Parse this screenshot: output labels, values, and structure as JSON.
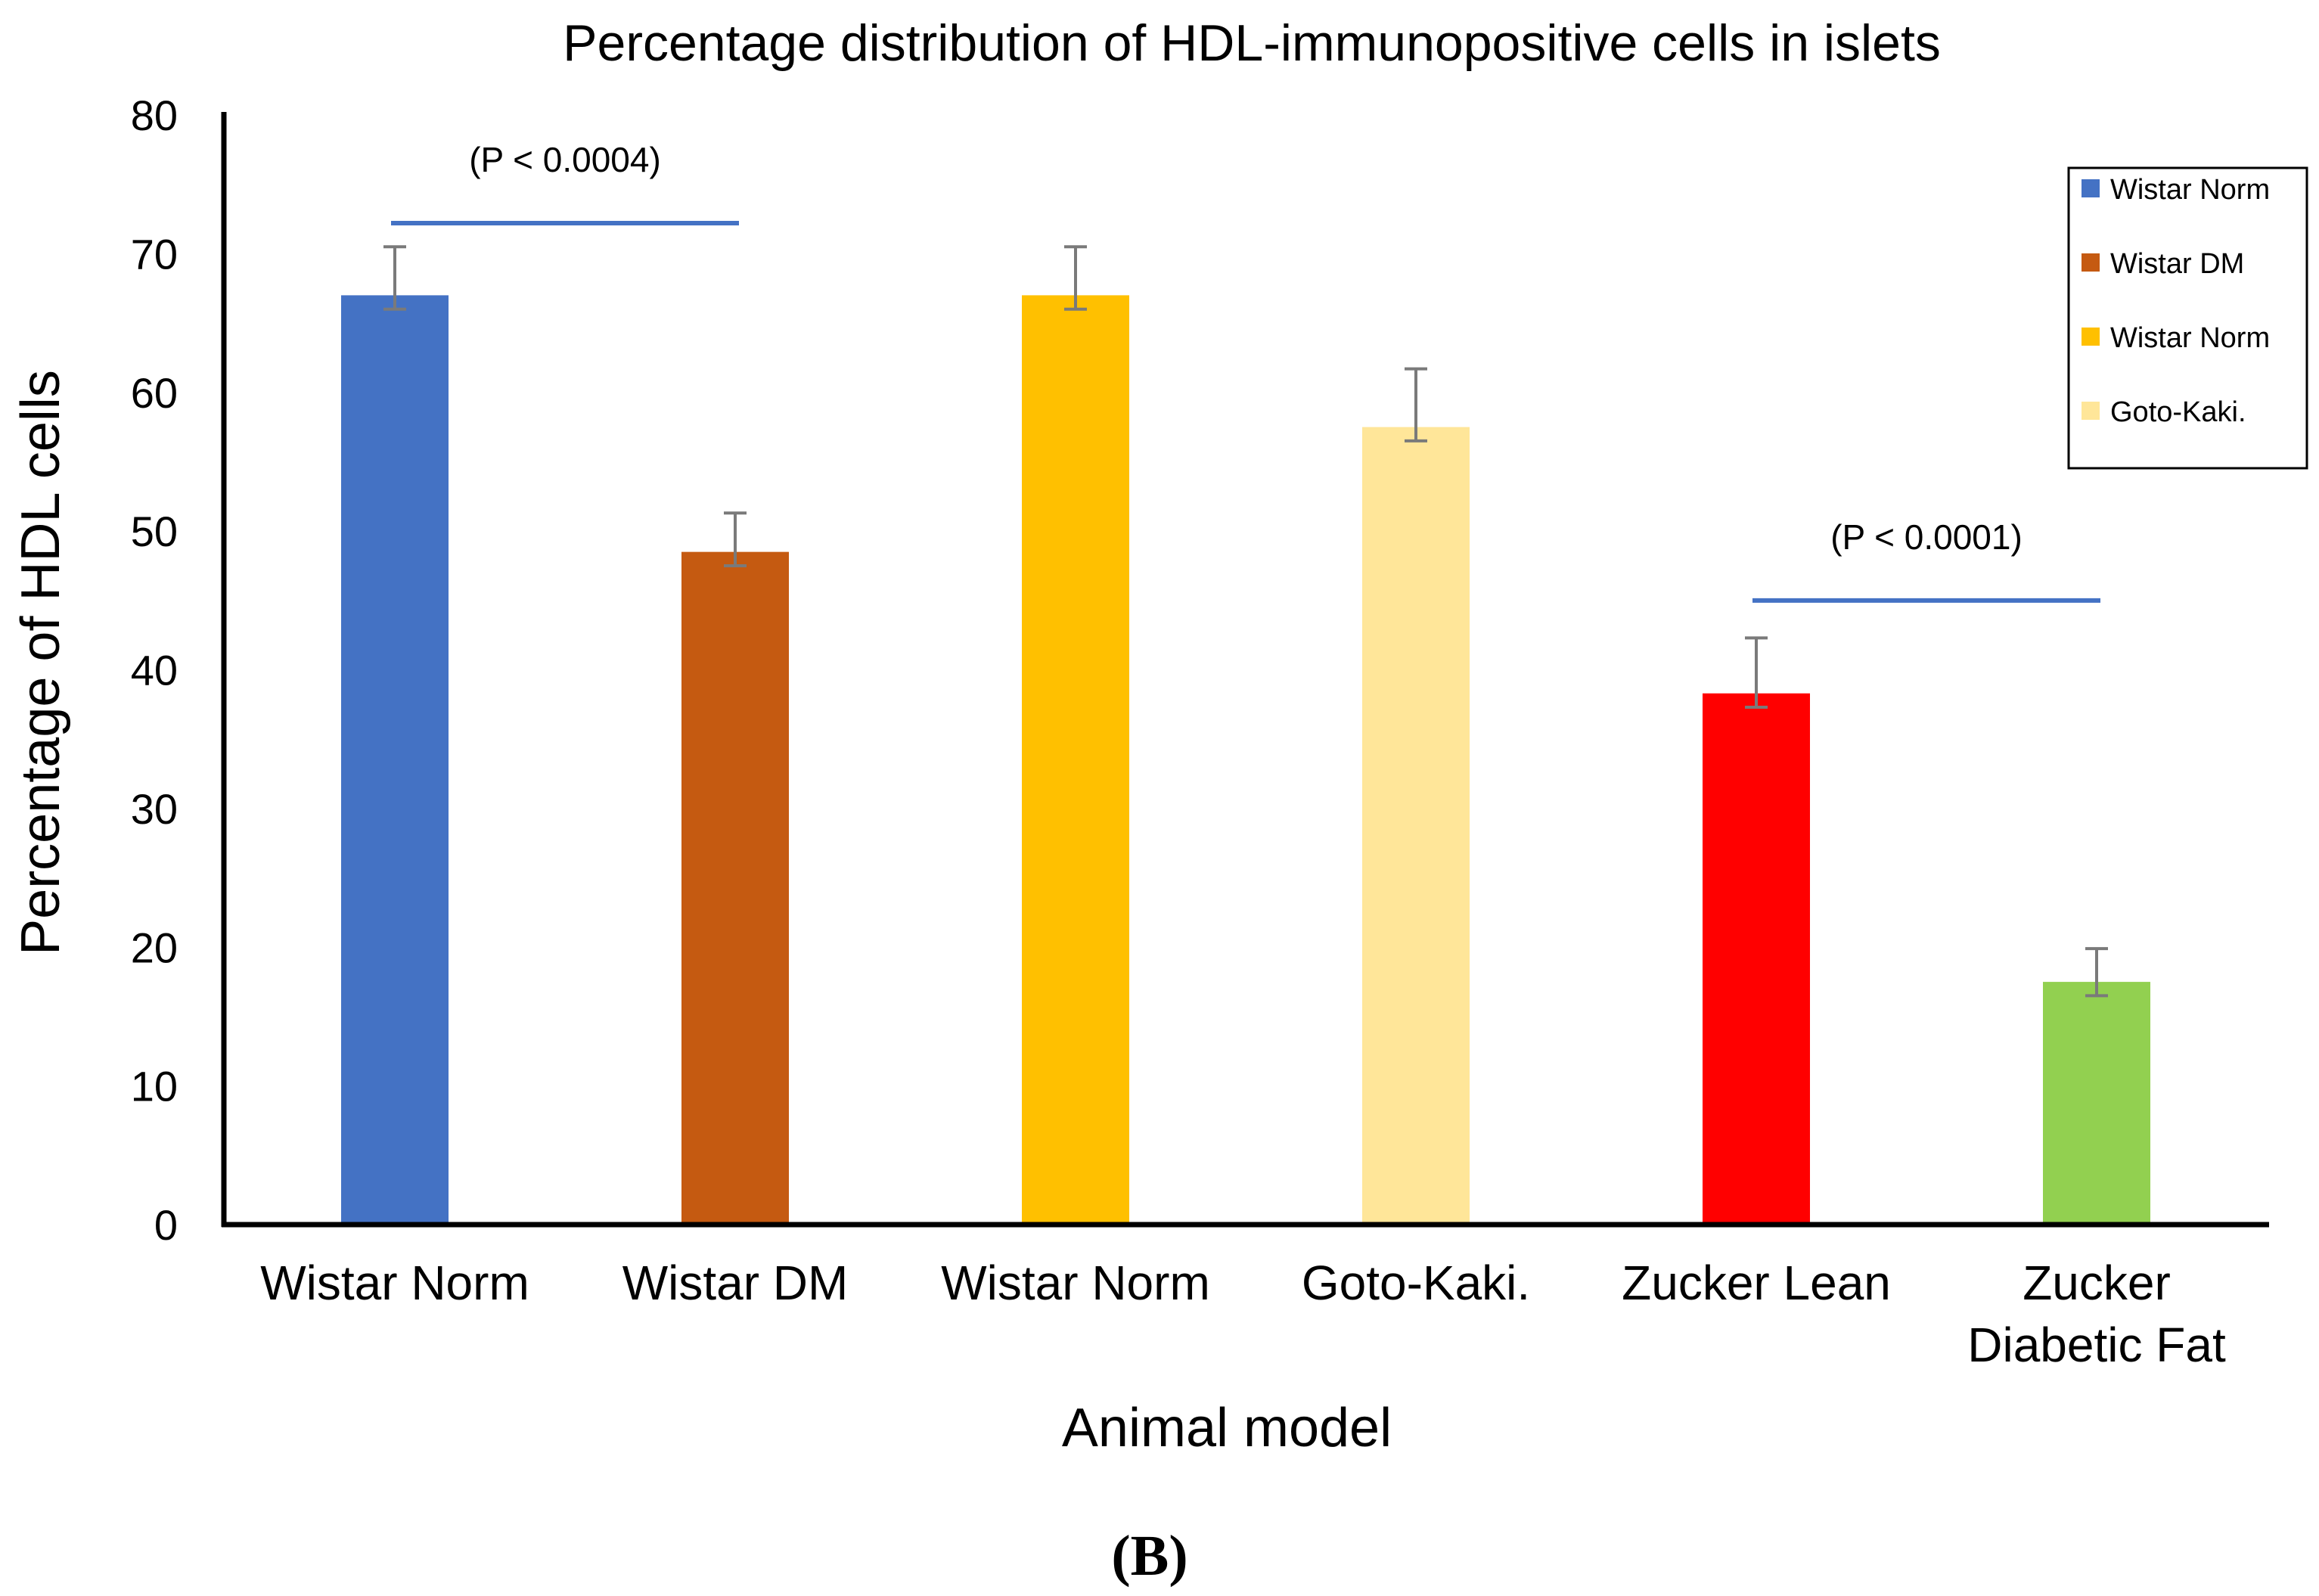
{
  "chart_data": {
    "type": "bar",
    "title": "Percentage distribution of HDL-immunopositive cells in islets",
    "xlabel": "Animal model",
    "ylabel": "Percentage of HDL cells",
    "ylim": [
      0,
      80
    ],
    "yticks": [
      0,
      10,
      20,
      30,
      40,
      50,
      60,
      70,
      80
    ],
    "grid": false,
    "categories": [
      [
        "Wistar Norm"
      ],
      [
        "Wistar DM"
      ],
      [
        "Wistar Norm"
      ],
      [
        "Goto-Kaki."
      ],
      [
        "Zucker Lean"
      ],
      [
        "Zucker",
        "Diabetic Fat"
      ]
    ],
    "values": [
      67,
      48.5,
      67,
      57.5,
      38.3,
      17.5
    ],
    "error_upper": [
      3.5,
      2.8,
      3.5,
      4.2,
      4.0,
      2.4
    ],
    "error_lower": [
      1.0,
      1.0,
      1.0,
      1.0,
      1.0,
      1.0
    ],
    "colors": [
      "#4472C4",
      "#C55A11",
      "#FFC000",
      "#FFE699",
      "#FF0000",
      "#92D050"
    ],
    "legend": {
      "placement": "top-right",
      "entries": [
        {
          "label": "Wistar Norm",
          "color": "#4472C4"
        },
        {
          "label": " Wistar DM",
          "color": "#C55A11"
        },
        {
          "label": "Wistar Norm",
          "color": "#FFC000"
        },
        {
          "label": "Goto-Kaki.",
          "color": "#FFE699"
        }
      ]
    },
    "annotations": [
      {
        "text": "(P < 0.0004)",
        "from": 0,
        "to": 1,
        "y": 72.2,
        "color": "#4472C4"
      },
      {
        "text": "(P < 0.0001)",
        "from": 4,
        "to": 5,
        "y": 45,
        "color": "#4472C4"
      }
    ],
    "panel_label": "(B)"
  }
}
